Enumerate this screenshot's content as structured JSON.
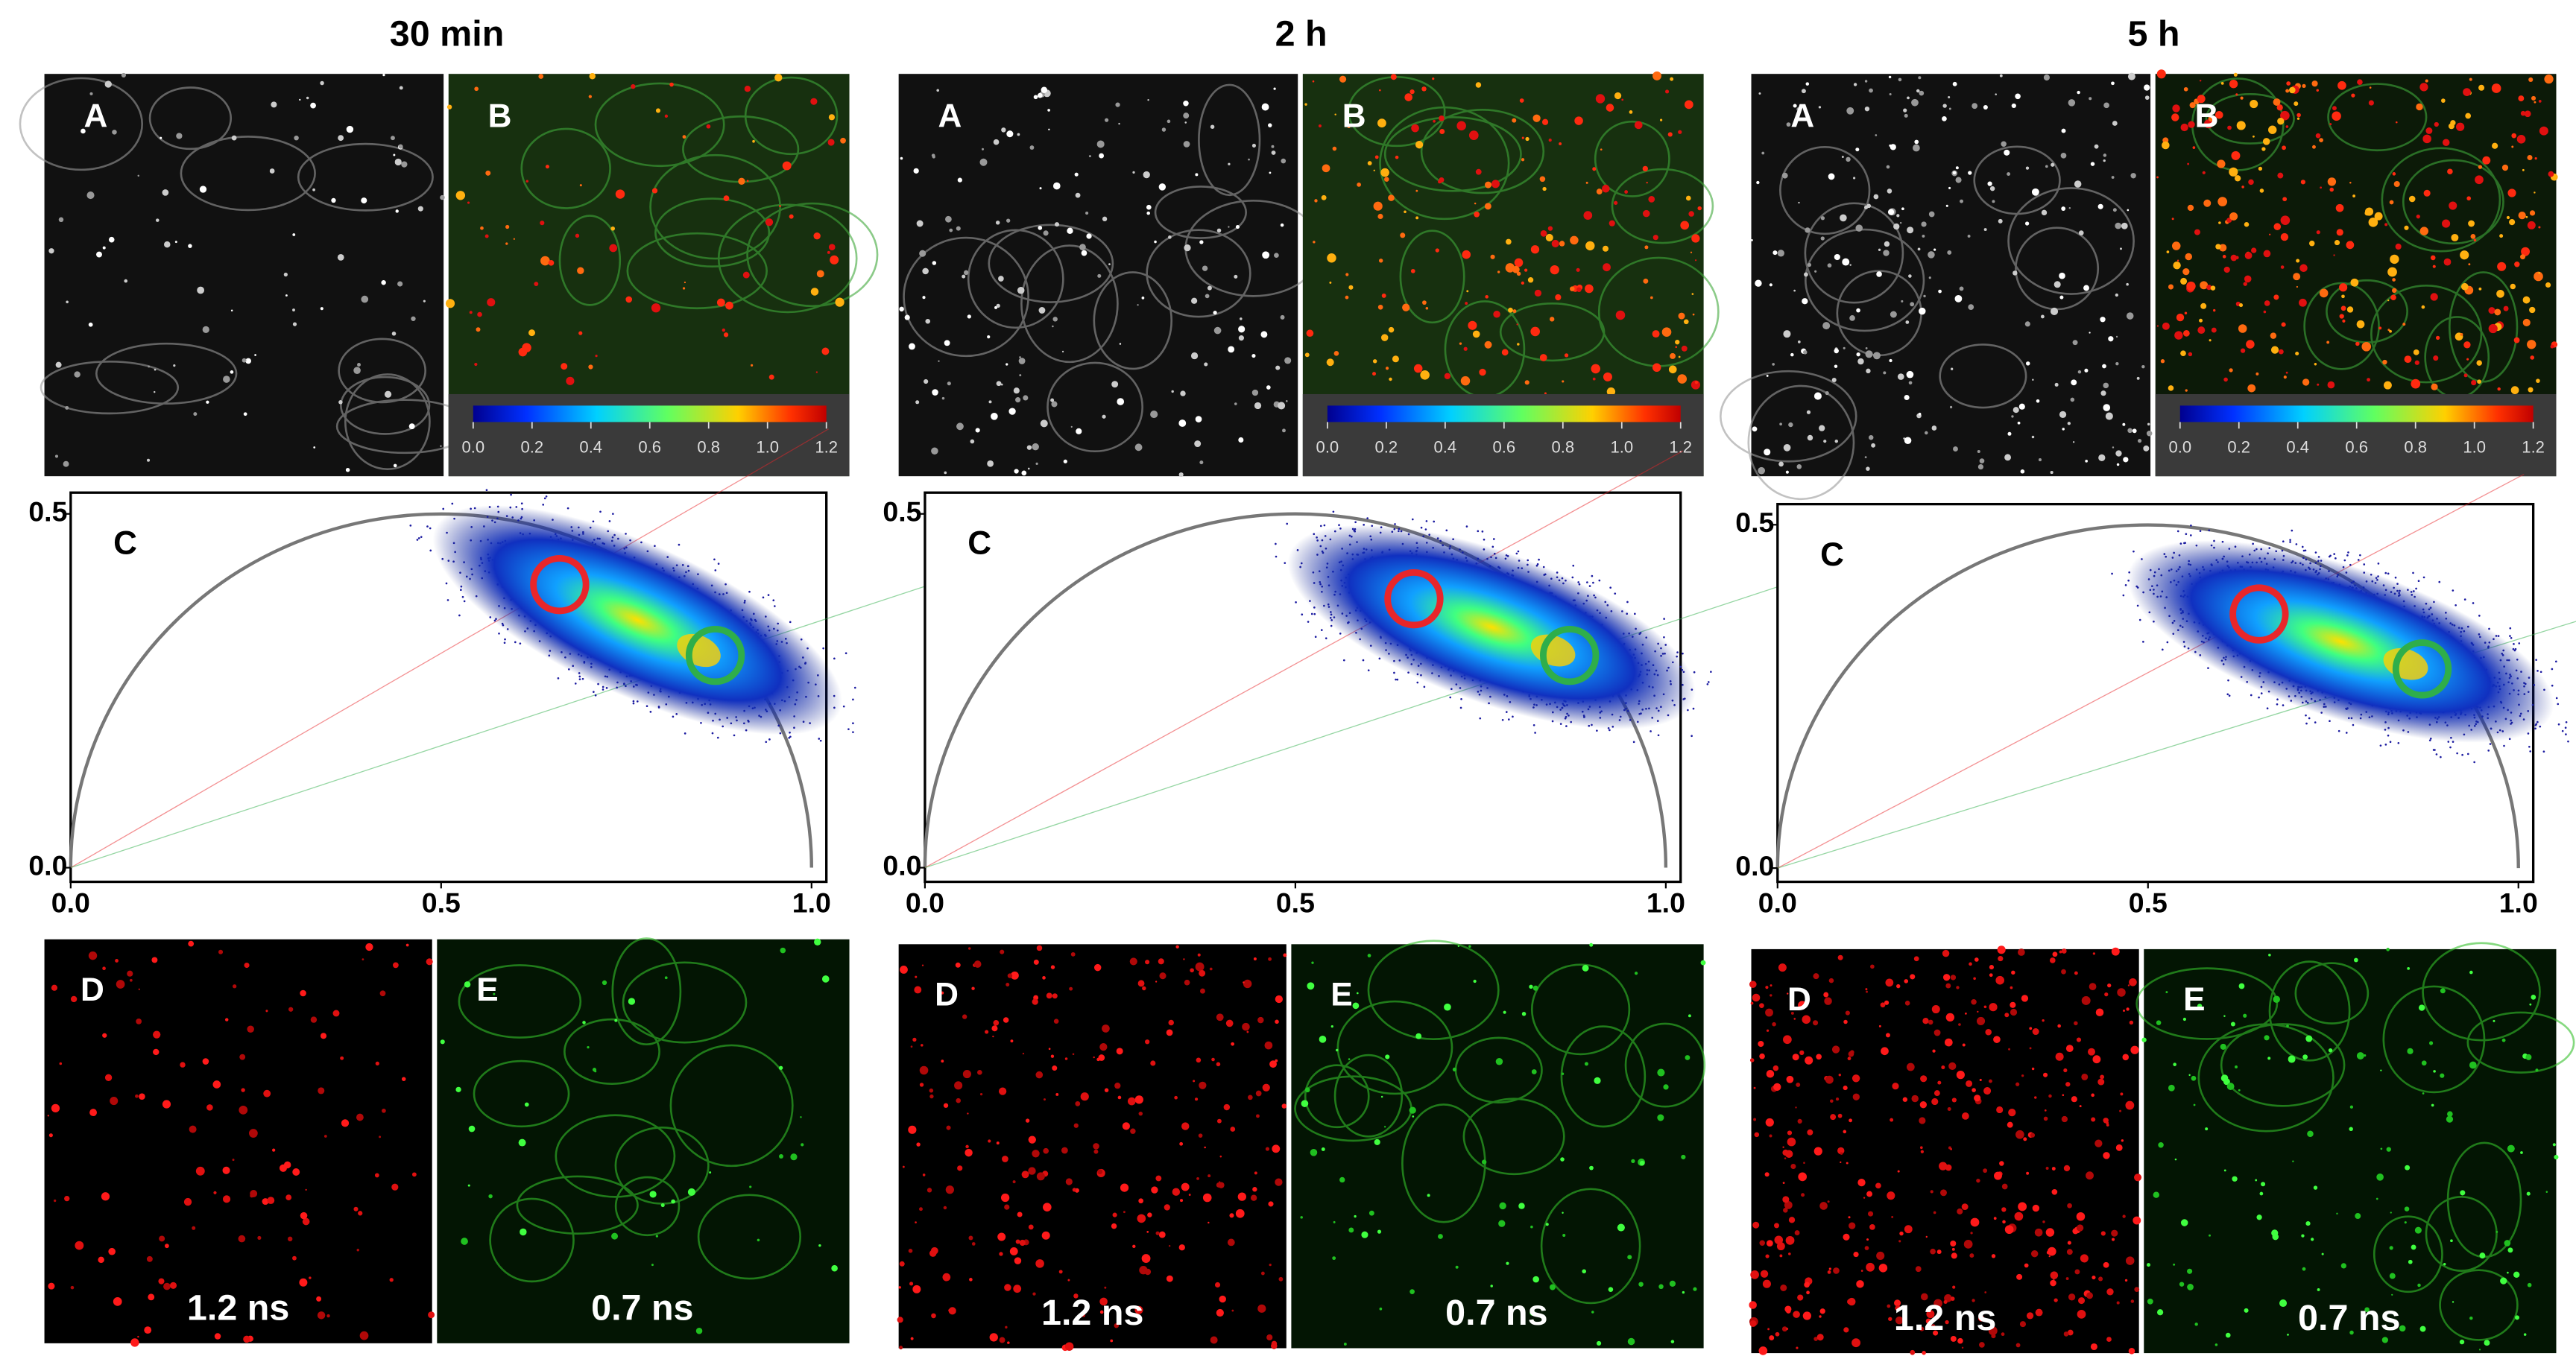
{
  "columns": [
    {
      "title": "30 min",
      "labels": {
        "a": "A",
        "b": "B",
        "c": "C",
        "d": "D",
        "e": "E"
      },
      "colorbar_ticks": [
        {
          "value": 0,
          "label": "0.0"
        },
        0.2,
        0.4,
        0.6,
        0.8,
        {
          "value": 1,
          "label": "1.0"
        },
        1.2
      ],
      "phasor": {
        "xlim": [
          0,
          1.02
        ],
        "ylim": [
          -0.02,
          0.53
        ],
        "xticks": [
          {
            "value": 0,
            "label": "0.0"
          },
          0.5,
          {
            "value": 1,
            "label": "1.0"
          }
        ],
        "yticks": [
          {
            "value": 0,
            "label": "0.0"
          },
          0.5
        ],
        "circles": [
          {
            "color": "#e8262a",
            "g": 0.66,
            "s": 0.4
          },
          {
            "color": "#2fae4a",
            "g": 0.87,
            "s": 0.3
          }
        ]
      },
      "lifetimes": [
        "1.2 ns",
        "0.7 ns"
      ]
    },
    {
      "title": "2 h",
      "labels": {
        "a": "A",
        "b": "B",
        "c": "C",
        "d": "D",
        "e": "E"
      },
      "colorbar_ticks": [
        {
          "value": 0,
          "label": "0.0"
        },
        0.2,
        0.4,
        0.6,
        0.8,
        {
          "value": 1,
          "label": "1.0"
        },
        1.2
      ],
      "phasor": {
        "xlim": [
          0,
          1.02
        ],
        "ylim": [
          -0.02,
          0.53
        ],
        "xticks": [
          {
            "value": 0,
            "label": "0.0"
          },
          0.5,
          {
            "value": 1,
            "label": "1.0"
          }
        ],
        "yticks": [
          {
            "value": 0,
            "label": "0.0"
          },
          0.5
        ],
        "circles": [
          {
            "color": "#e8262a",
            "g": 0.66,
            "s": 0.38
          },
          {
            "color": "#2fae4a",
            "g": 0.87,
            "s": 0.3
          }
        ]
      },
      "lifetimes": [
        "1.2 ns",
        "0.7 ns"
      ]
    },
    {
      "title": "5 h",
      "labels": {
        "a": "A",
        "b": "B",
        "c": "C",
        "d": "D",
        "e": "E"
      },
      "colorbar_ticks": [
        {
          "value": 0,
          "label": "0.0"
        },
        0.2,
        0.4,
        0.6,
        0.8,
        {
          "value": 1,
          "label": "1.0"
        },
        1.2
      ],
      "phasor": {
        "xlim": [
          0,
          1.02
        ],
        "ylim": [
          -0.02,
          0.53
        ],
        "xticks": [
          {
            "value": 0,
            "label": "0.0"
          },
          0.5,
          {
            "value": 1,
            "label": "1.0"
          }
        ],
        "yticks": [
          {
            "value": 0,
            "label": "0.0"
          },
          0.5
        ],
        "circles": [
          {
            "color": "#e8262a",
            "g": 0.65,
            "s": 0.37
          },
          {
            "color": "#2fae4a",
            "g": 0.87,
            "s": 0.29
          }
        ]
      },
      "lifetimes": [
        "1.2 ns",
        "0.7 ns"
      ]
    }
  ]
}
